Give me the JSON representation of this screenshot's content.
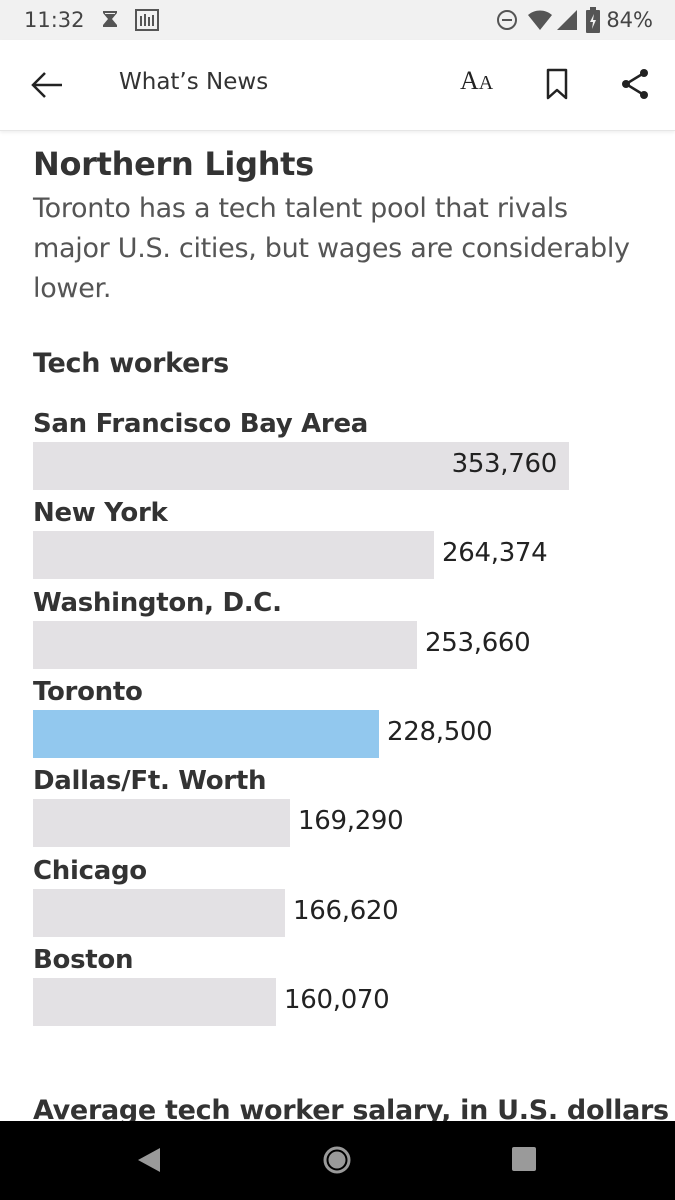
{
  "status_bar": {
    "time": "11:32",
    "battery": "84%",
    "icons": [
      "hourglass-icon",
      "chart-notification-icon",
      "do-not-disturb-icon",
      "wifi-icon",
      "cell-signal-icon",
      "battery-charging-icon"
    ]
  },
  "app_bar": {
    "title": "What’s News",
    "font_size_label_big": "A",
    "font_size_label_small": "A",
    "icons": [
      "back-arrow-icon",
      "bookmark-icon",
      "share-icon"
    ]
  },
  "article": {
    "headline": "Northern Lights",
    "dek": "Toronto has a tech talent pool that rivals major U.S. cities, but wages are considerably lower.",
    "next_chart_title": "Average tech worker salary, in U.S. dollars"
  },
  "chart_data": {
    "type": "bar",
    "orientation": "horizontal",
    "title": "Tech workers",
    "categories": [
      "San Francisco Bay Area",
      "New York",
      "Washington, D.C.",
      "Toronto",
      "Dallas/Ft. Worth",
      "Chicago",
      "Boston"
    ],
    "values": [
      353760,
      264374,
      253660,
      228500,
      169290,
      166620,
      160070
    ],
    "value_labels": [
      "353,760",
      "264,374",
      "253,660",
      "228,500",
      "169,290",
      "166,620",
      "160,070"
    ],
    "highlight": "Toronto",
    "colors": {
      "bar": "#e3e1e4",
      "highlight": "#92c8ee"
    },
    "xlim": [
      0,
      353760
    ],
    "grid": false
  },
  "nav_bar": {
    "icons": [
      "nav-back-icon",
      "nav-home-icon",
      "nav-recents-icon"
    ]
  }
}
